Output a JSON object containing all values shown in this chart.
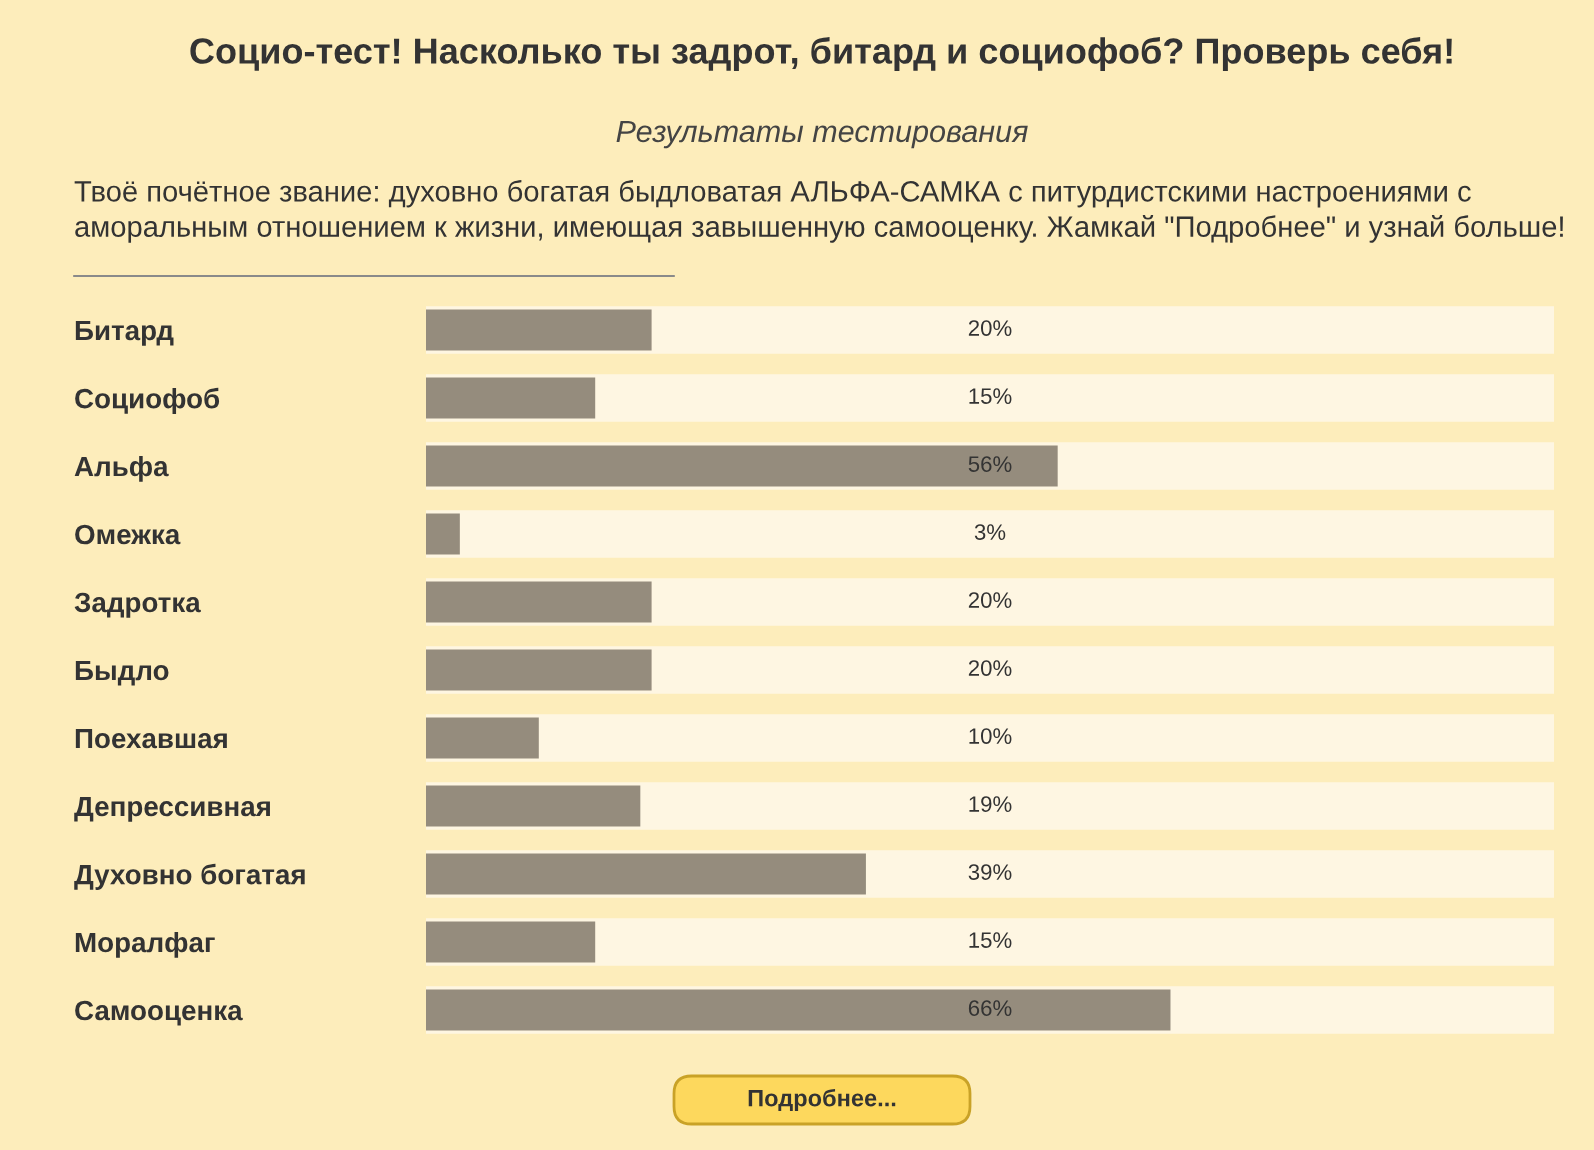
{
  "chart_data": {
    "type": "bar",
    "orientation": "horizontal",
    "title": "Социо-тест! Насколько ты задрот, битард и социофоб? Проверь себя!",
    "subtitle": "Результаты тестирования",
    "annotations": [
      "Твоё почётное звание: духовно богатая быдловатая АЛЬФА-САМКА с питурдистскими настроениями с аморальным отношением к жизни, имеющая завышенную самооценку. Жамкай \"Подробнее\" и узнай больше!",
      "Подробнее..."
    ],
    "categories": [
      "Битард",
      "Социофоб",
      "Альфа",
      "Омежка",
      "Задротка",
      "Быдло",
      "Поехавшая",
      "Депрессивная",
      "Духовно богатая",
      "Моралфаг",
      "Самооценка"
    ],
    "values": [
      20,
      15,
      56,
      3,
      20,
      20,
      10,
      19,
      39,
      15,
      66
    ],
    "value_labels": [
      "20%",
      "15%",
      "56%",
      "3%",
      "20%",
      "20%",
      "10%",
      "19%",
      "39%",
      "15%",
      "66%"
    ],
    "color": "#958c7d",
    "xlim": [
      0,
      100
    ],
    "tick_labels": "y"
  }
}
